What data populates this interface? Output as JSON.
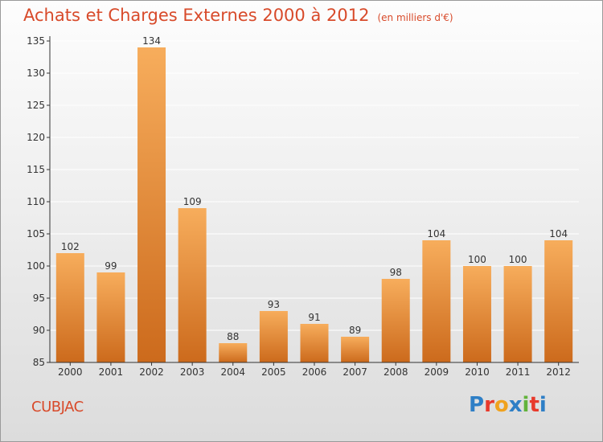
{
  "title": "Achats et Charges Externes 2000 à 2012",
  "title_unit": "(en milliers d'€)",
  "place": "CUBJAC",
  "logo": {
    "text": "Proxiti",
    "colors": [
      "#2e7fc6",
      "#e8392b",
      "#f0a21e",
      "#2e7fc6",
      "#62b33b",
      "#e8392b",
      "#2e7fc6"
    ]
  },
  "colors": {
    "bar_light": "#f7ad5c",
    "bar_dark": "#cc6a1c",
    "title": "#d84a2a",
    "grid": "#ffffff",
    "axis": "#333333"
  },
  "chart_data": {
    "type": "bar",
    "title": "Achats et Charges Externes 2000 à 2012",
    "categories": [
      "2000",
      "2001",
      "2002",
      "2003",
      "2004",
      "2005",
      "2006",
      "2007",
      "2008",
      "2009",
      "2010",
      "2011",
      "2012"
    ],
    "values": [
      102,
      99,
      134,
      109,
      88,
      93,
      91,
      89,
      98,
      104,
      100,
      100,
      104
    ],
    "ylim": [
      85,
      135
    ],
    "yticks": [
      85,
      90,
      95,
      100,
      105,
      110,
      115,
      120,
      125,
      130,
      135
    ],
    "grid": true,
    "xlabel": "",
    "ylabel": ""
  }
}
